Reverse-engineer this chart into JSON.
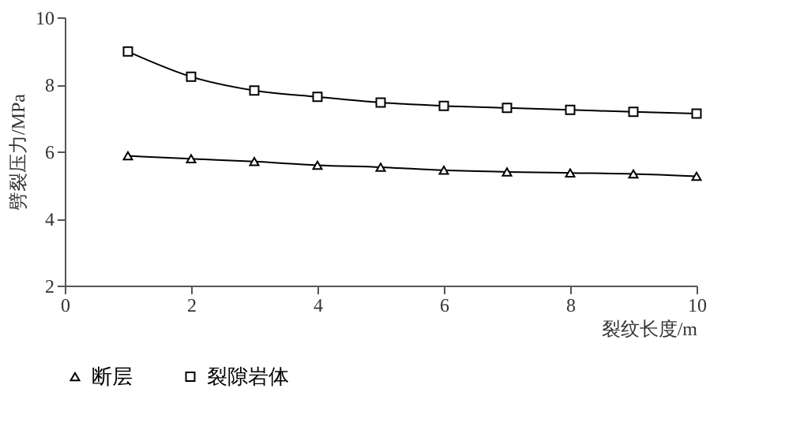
{
  "chart_data": {
    "type": "line",
    "xlabel": "裂纹长度/m",
    "ylabel": "劈裂压力/MPa",
    "x": [
      1,
      2,
      3,
      4,
      5,
      6,
      7,
      8,
      9,
      10
    ],
    "series": [
      {
        "name": "断层",
        "color": "#000000",
        "marker": "triangle",
        "values": [
          5.87,
          5.78,
          5.7,
          5.59,
          5.53,
          5.44,
          5.39,
          5.36,
          5.33,
          5.26
        ]
      },
      {
        "name": "裂隙岩体",
        "color": "#000000",
        "marker": "square",
        "values": [
          8.98,
          8.23,
          7.82,
          7.63,
          7.46,
          7.36,
          7.3,
          7.24,
          7.18,
          7.13
        ]
      }
    ],
    "xlim": [
      0,
      10
    ],
    "xticks": [
      0,
      2,
      4,
      6,
      8,
      10
    ],
    "ylim": [
      2,
      10
    ],
    "yticks": [
      2,
      4,
      6,
      8,
      10
    ],
    "grid": false,
    "legend": "bottom",
    "line_style": "solid"
  }
}
